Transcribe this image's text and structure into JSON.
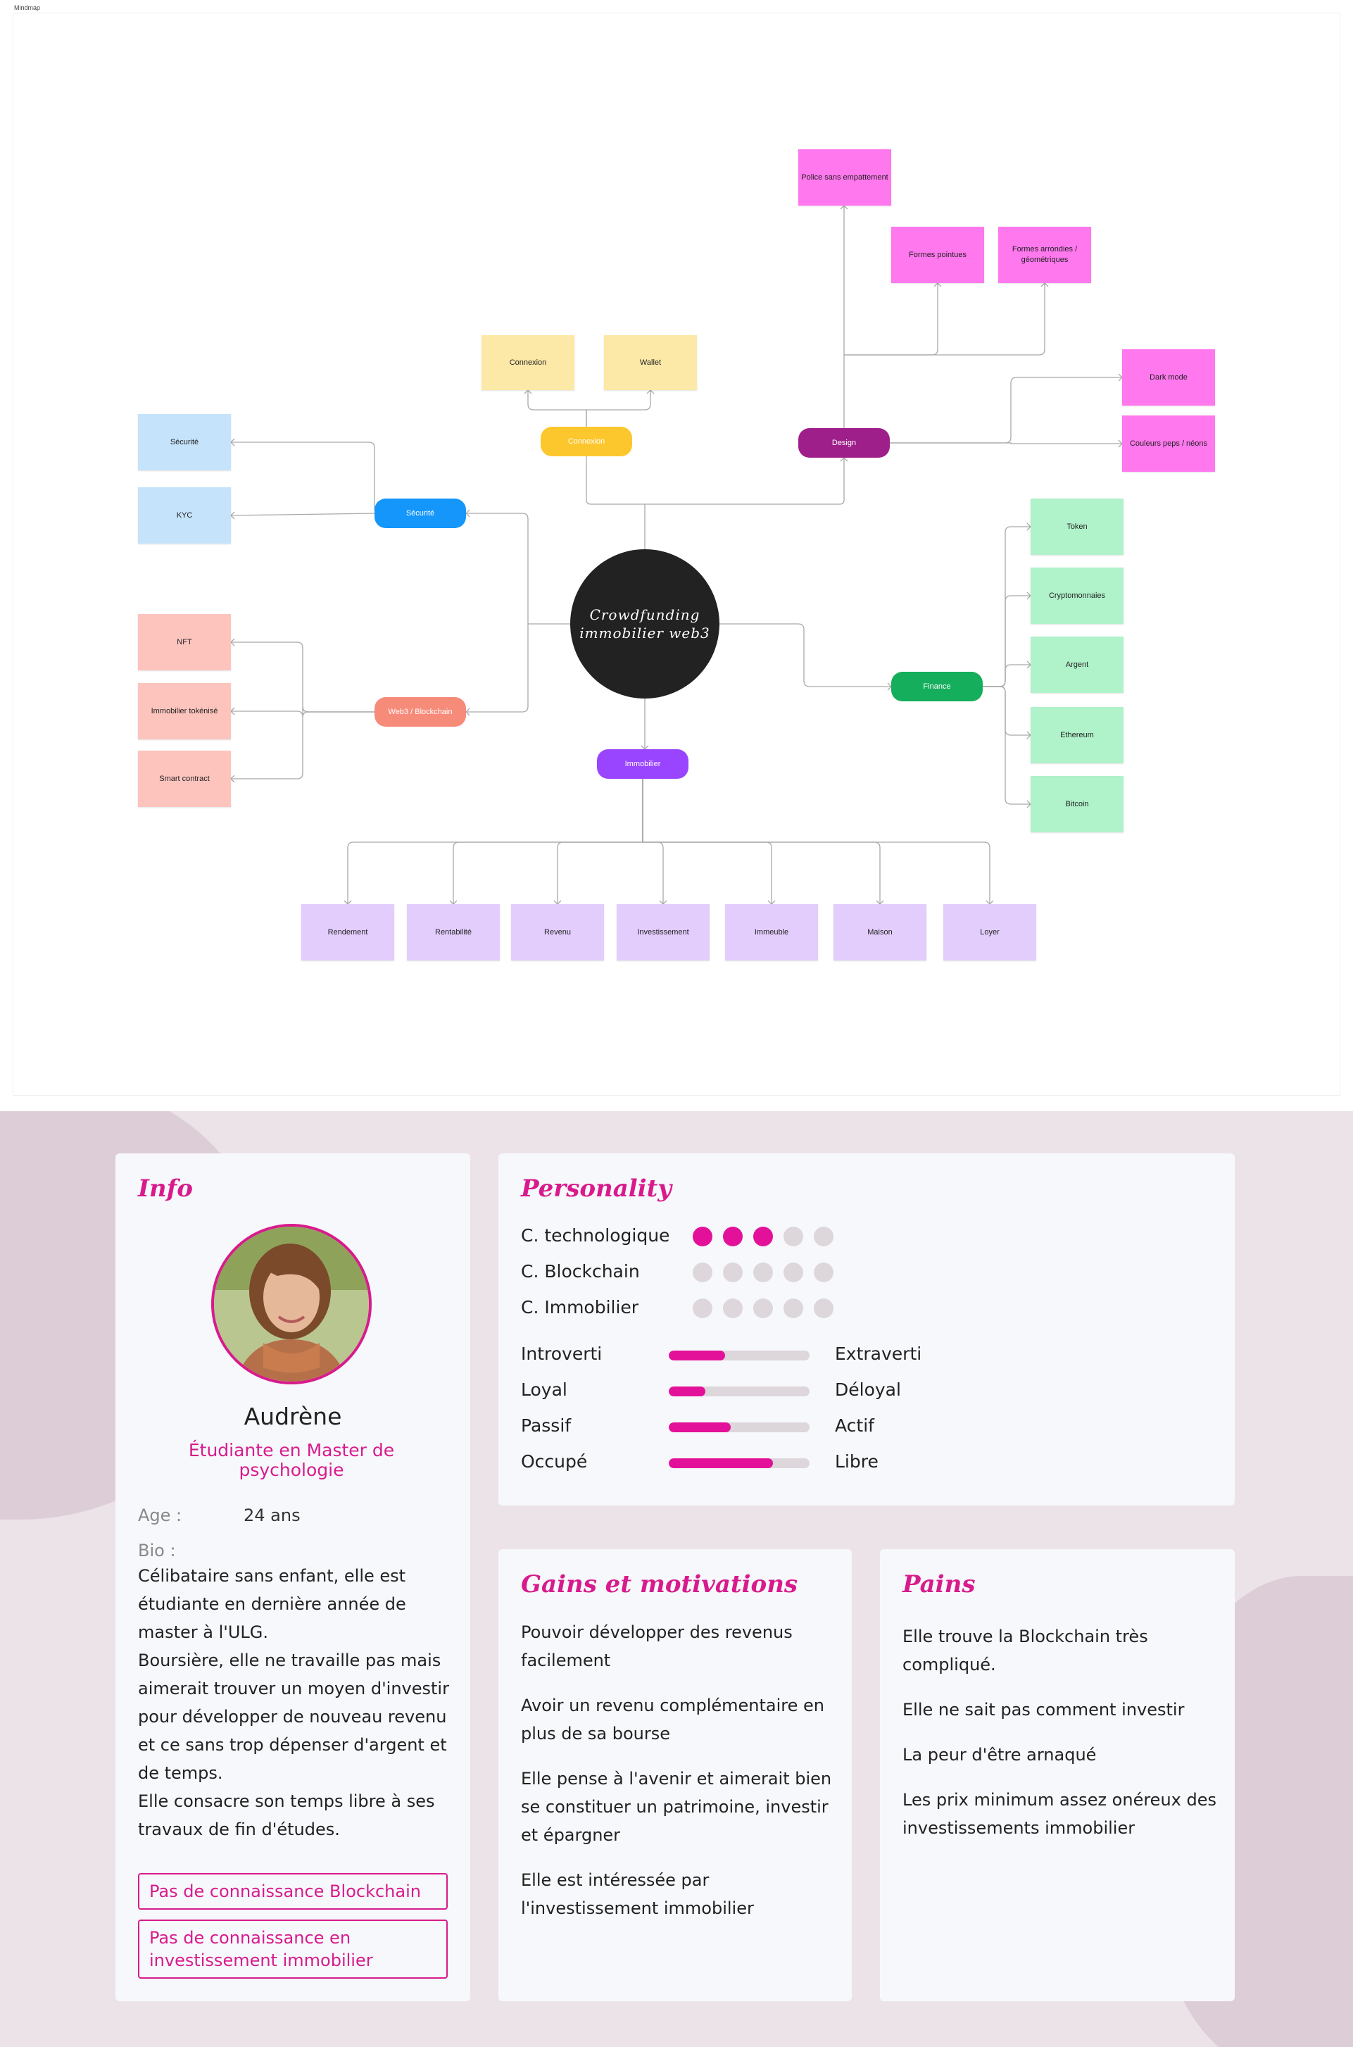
{
  "frame_label": "Mindmap",
  "mindmap": {
    "center": "Crowdfunding immobilier web3",
    "branches": [
      {
        "id": "connexion",
        "label": "Connexion",
        "color": "#fcc62d",
        "children": [
          "Connexion",
          "Wallet"
        ],
        "child_color": "#fde9a7"
      },
      {
        "id": "design",
        "label": "Design",
        "color": "#9e1f8a",
        "children": [
          "Police sans empattement",
          "Formes pointues",
          "Formes arrondies / géométriques",
          "Dark mode",
          "Couleurs peps / néons"
        ],
        "child_color": "#ff78ee"
      },
      {
        "id": "securite",
        "label": "Sécurité",
        "color": "#1496fa",
        "children": [
          "Sécurité",
          "KYC"
        ],
        "child_color": "#c5e3fb"
      },
      {
        "id": "web3",
        "label": "Web3 / Blockchain",
        "color": "#f78b7a",
        "children": [
          "NFT",
          "Immobilier tokénisé",
          "Smart contract"
        ],
        "child_color": "#fdc4be"
      },
      {
        "id": "finance",
        "label": "Finance",
        "color": "#14ae5c",
        "children": [
          "Token",
          "Cryptomonnaies",
          "Argent",
          "Ethereum",
          "Bitcoin"
        ],
        "child_color": "#b0f2ca"
      },
      {
        "id": "immobilier",
        "label": "Immobilier",
        "color": "#9945ff",
        "children": [
          "Rendement",
          "Rentabilité",
          "Revenu",
          "Investissement",
          "Immeuble",
          "Maison",
          "Loyer"
        ],
        "child_color": "#e3cdfd"
      }
    ]
  },
  "persona": {
    "info": {
      "title": "Info",
      "name": "Audrène",
      "role": "Étudiante en Master de psychologie",
      "age_label": "Age :",
      "age_value": "24 ans",
      "bio_label": "Bio :",
      "bio_paragraphs": [
        "Célibataire sans enfant, elle est étudiante en dernière année de master à l'ULG.",
        "Boursière, elle ne travaille pas mais aimerait trouver un moyen d'investir pour développer de nouveau revenu et ce sans trop dépenser d'argent et de temps.",
        "Elle consacre son temps libre à ses travaux de fin d'études."
      ],
      "tags": [
        "Pas de connaissance Blockchain",
        "Pas de connaissance en investissement immobilier"
      ]
    },
    "personality": {
      "title": "Personality",
      "ratings": [
        {
          "label": "C. technologique",
          "value": 3,
          "max": 5
        },
        {
          "label": "C. Blockchain",
          "value": 0,
          "max": 5
        },
        {
          "label": "C. Immobilier",
          "value": 0,
          "max": 5
        }
      ],
      "sliders": [
        {
          "left": "Introverti",
          "right": "Extraverti",
          "value": 0.4
        },
        {
          "left": "Loyal",
          "right": "Déloyal",
          "value": 0.26
        },
        {
          "left": "Passif",
          "right": "Actif",
          "value": 0.44
        },
        {
          "left": "Occupé",
          "right": "Libre",
          "value": 0.74
        }
      ]
    },
    "gains": {
      "title": "Gains et motivations",
      "items": [
        "Pouvoir développer des revenus facilement",
        "Avoir un revenu complémentaire en plus de sa bourse",
        "Elle pense à l'avenir et aimerait bien se constituer un patrimoine, investir et épargner",
        "Elle est intéressée par l'investissement immobilier"
      ]
    },
    "pains": {
      "title": "Pains",
      "items": [
        "Elle trouve la Blockchain très compliqué.",
        "Elle ne sait pas comment investir",
        "La peur d'être arnaqué",
        "Les prix minimum assez onéreux des investissements immobilier"
      ]
    },
    "colors": {
      "accent": "#d81b8c",
      "background": "#ebe3e8",
      "card": "#f7f8fc"
    }
  }
}
